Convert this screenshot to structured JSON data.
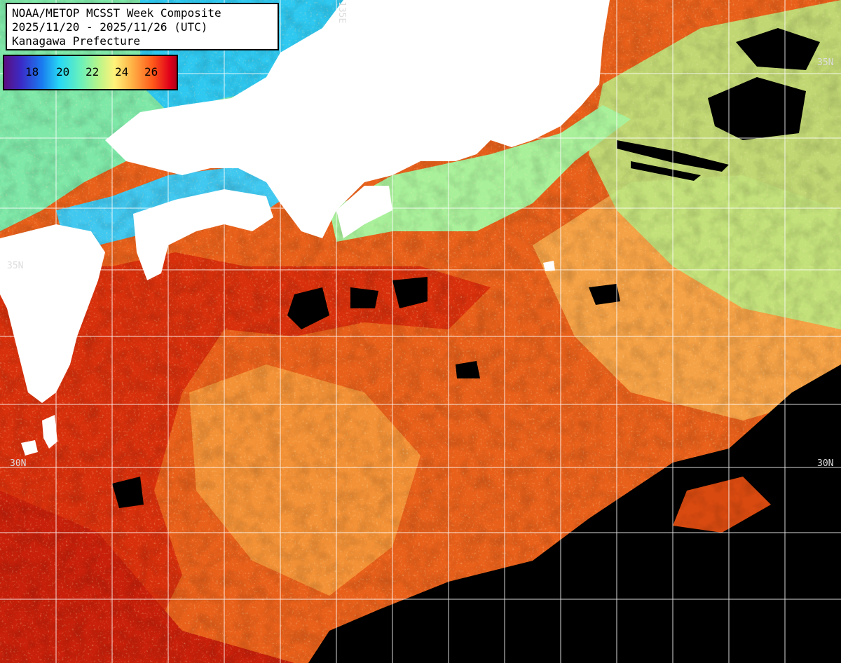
{
  "title": {
    "line1": "NOAA/METOP MCSST Week Composite",
    "line2": "2025/11/20 - 2025/11/26 (UTC)",
    "line3": "Kanagawa Prefecture"
  },
  "legend": {
    "ticks": [
      "18",
      "20",
      "22",
      "24",
      "26"
    ],
    "colors": [
      "#5b0f80",
      "#1a7cf0",
      "#27d8f4",
      "#b2f58c",
      "#fff37a",
      "#ffb347",
      "#ff5a1a",
      "#e0001a"
    ]
  },
  "grid": {
    "lat_labels": [
      "35N",
      "35N",
      "30N",
      "30N"
    ],
    "lon_label": "135E"
  },
  "colors": {
    "land": "#ffffff",
    "no_data": "#000000",
    "warm": "#e8501a",
    "hot": "#d8250c",
    "mild": "#f7a040",
    "cool": "#9ef090",
    "cold": "#2ab0f0",
    "grid": "#ffffff"
  }
}
